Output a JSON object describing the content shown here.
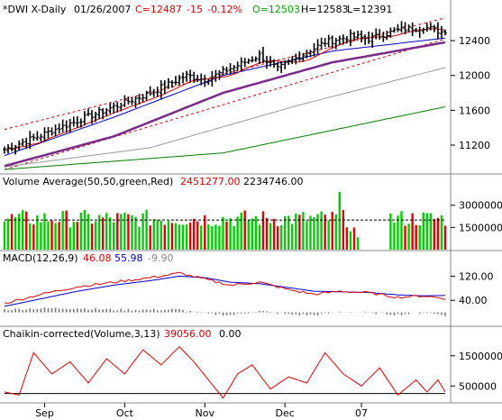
{
  "chart_data": [
    {
      "panel": "price",
      "type": "ohlc",
      "header": {
        "symbol": "*DWI X-Daily",
        "date": "01/26/2007",
        "close": "C=12487",
        "change": "-15",
        "change_pct": "-0.12%",
        "open": "O=12503",
        "high": "H=12583",
        "low": "L=12391"
      },
      "ylim": [
        10900,
        12680
      ],
      "yticks": [
        "12400",
        "12000",
        "11600",
        "11200"
      ],
      "ytick_values": [
        12400,
        12000,
        11600,
        11200
      ],
      "x_labels": [
        "Sep",
        "Oct",
        "Nov",
        "Dec",
        "07"
      ],
      "x_label_days": [
        11,
        33,
        55,
        77,
        98
      ],
      "n_bars": 122,
      "close_anchors": [
        [
          0,
          11150
        ],
        [
          20,
          11480
        ],
        [
          40,
          11800
        ],
        [
          50,
          12000
        ],
        [
          55,
          11950
        ],
        [
          62,
          12080
        ],
        [
          70,
          12230
        ],
        [
          75,
          12070
        ],
        [
          80,
          12200
        ],
        [
          88,
          12380
        ],
        [
          95,
          12450
        ],
        [
          100,
          12420
        ],
        [
          108,
          12520
        ],
        [
          115,
          12560
        ],
        [
          121,
          12487
        ]
      ],
      "moving_averages": [
        {
          "name": "10-day",
          "color": "#d00000"
        },
        {
          "name": "20-day",
          "color": "#0000cc"
        },
        {
          "name": "50-day",
          "color": "#7a2a8a"
        },
        {
          "name": "100-day",
          "color": "#999999"
        },
        {
          "name": "200-day",
          "color": "#008000"
        }
      ],
      "ma_anchors": {
        "20-day": [
          [
            0,
            11080
          ],
          [
            30,
            11520
          ],
          [
            60,
            12000
          ],
          [
            90,
            12280
          ],
          [
            121,
            12430
          ]
        ],
        "50-day": [
          [
            0,
            10960
          ],
          [
            30,
            11300
          ],
          [
            60,
            11800
          ],
          [
            90,
            12150
          ],
          [
            121,
            12380
          ]
        ],
        "100-day": [
          [
            0,
            10950
          ],
          [
            40,
            11170
          ],
          [
            80,
            11650
          ],
          [
            121,
            12090
          ]
        ],
        "200-day": [
          [
            0,
            10920
          ],
          [
            60,
            11110
          ],
          [
            121,
            11640
          ]
        ]
      },
      "channel": {
        "color": "#cc0000",
        "upper": [
          [
            0,
            11380
          ],
          [
            121,
            12660
          ]
        ],
        "lower": [
          [
            0,
            10920
          ],
          [
            121,
            12420
          ]
        ]
      }
    },
    {
      "panel": "volume",
      "type": "bar",
      "title": "Volume Average(50,50,green,Red)",
      "value1": "2451277.00",
      "value2": "2234746.00",
      "ylim": [
        0,
        4200000
      ],
      "yticks": [
        "3000000",
        "1500000"
      ],
      "ytick_values": [
        3000000,
        1500000
      ],
      "average": 2000000,
      "up_color": "#00cc00",
      "down_color": "#dd0000",
      "gaps": [
        98,
        99,
        100,
        101,
        102,
        103,
        104,
        105
      ]
    },
    {
      "panel": "macd",
      "type": "line",
      "title": "MACD(12,26,9)",
      "macd_value": "46.08",
      "signal_value": "55.98",
      "hist_value": "-9.90",
      "ylim": [
        -40,
        160
      ],
      "yticks": [
        "120.00",
        "40.00"
      ],
      "ytick_values": [
        120,
        40
      ],
      "macd_anchors": [
        [
          0,
          30
        ],
        [
          10,
          60
        ],
        [
          20,
          85
        ],
        [
          30,
          100
        ],
        [
          40,
          115
        ],
        [
          48,
          130
        ],
        [
          55,
          110
        ],
        [
          62,
          90
        ],
        [
          70,
          100
        ],
        [
          78,
          75
        ],
        [
          85,
          60
        ],
        [
          92,
          70
        ],
        [
          100,
          65
        ],
        [
          108,
          50
        ],
        [
          115,
          55
        ],
        [
          121,
          46
        ]
      ],
      "signal_anchors": [
        [
          0,
          20
        ],
        [
          10,
          45
        ],
        [
          20,
          70
        ],
        [
          30,
          90
        ],
        [
          40,
          105
        ],
        [
          48,
          120
        ],
        [
          55,
          115
        ],
        [
          62,
          100
        ],
        [
          70,
          95
        ],
        [
          78,
          82
        ],
        [
          85,
          70
        ],
        [
          92,
          68
        ],
        [
          100,
          66
        ],
        [
          108,
          58
        ],
        [
          115,
          55
        ],
        [
          121,
          56
        ]
      ],
      "macd_color": "#dd0000",
      "signal_color": "#0000cc",
      "hist_color": "#777777"
    },
    {
      "panel": "chaikin",
      "type": "line",
      "title": "Chaikin-corrected(Volume,3,13)",
      "value1": "39056.00",
      "value2": "0.00",
      "ylim": [
        0,
        2000000
      ],
      "yticks": [
        "1500000",
        "500000"
      ],
      "ytick_values": [
        1500000,
        500000
      ],
      "zero_line": 250000,
      "anchors": [
        [
          0,
          300000
        ],
        [
          4,
          200000
        ],
        [
          8,
          1600000
        ],
        [
          13,
          900000
        ],
        [
          18,
          1300000
        ],
        [
          23,
          600000
        ],
        [
          28,
          1400000
        ],
        [
          33,
          900000
        ],
        [
          38,
          1700000
        ],
        [
          43,
          1200000
        ],
        [
          48,
          1800000
        ],
        [
          52,
          1300000
        ],
        [
          56,
          700000
        ],
        [
          60,
          100000
        ],
        [
          64,
          900000
        ],
        [
          68,
          1200000
        ],
        [
          73,
          400000
        ],
        [
          78,
          800000
        ],
        [
          83,
          600000
        ],
        [
          88,
          1600000
        ],
        [
          93,
          900000
        ],
        [
          98,
          500000
        ],
        [
          103,
          1100000
        ],
        [
          108,
          200000
        ],
        [
          113,
          700000
        ],
        [
          116,
          300000
        ],
        [
          119,
          700000
        ],
        [
          121,
          300000
        ]
      ],
      "line_color": "#dd0000"
    }
  ]
}
